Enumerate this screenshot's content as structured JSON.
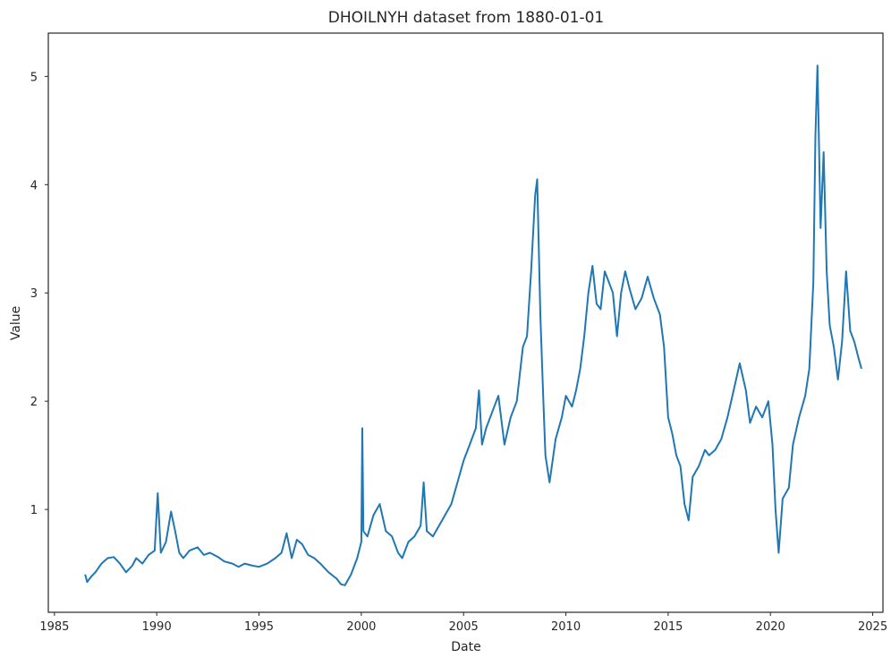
{
  "chart_data": {
    "type": "line",
    "title": "DHOILNYH dataset from 1880-01-01",
    "xlabel": "Date",
    "ylabel": "Value",
    "x_unit": "year",
    "xlim": [
      1984.7,
      2025.5
    ],
    "ylim": [
      0.05,
      5.4
    ],
    "x_ticks": [
      1985,
      1990,
      1995,
      2000,
      2005,
      2010,
      2015,
      2020,
      2025
    ],
    "y_ticks": [
      1,
      2,
      3,
      4,
      5
    ],
    "x_tick_labels": [
      "1985",
      "1990",
      "1995",
      "2000",
      "2005",
      "2010",
      "2015",
      "2020",
      "2025"
    ],
    "y_tick_labels": [
      "1",
      "2",
      "3",
      "4",
      "5"
    ],
    "grid": false,
    "series": [
      {
        "color": "#1f77b4",
        "x": [
          1986.5,
          1986.6,
          1986.8,
          1987.0,
          1987.3,
          1987.6,
          1987.9,
          1988.2,
          1988.5,
          1988.8,
          1989.0,
          1989.3,
          1989.6,
          1989.9,
          1990.05,
          1990.2,
          1990.45,
          1990.7,
          1990.9,
          1991.1,
          1991.3,
          1991.6,
          1992.0,
          1992.3,
          1992.6,
          1993.0,
          1993.3,
          1993.7,
          1994.0,
          1994.3,
          1994.7,
          1995.0,
          1995.4,
          1995.8,
          1996.1,
          1996.35,
          1996.6,
          1996.85,
          1997.1,
          1997.4,
          1997.7,
          1998.0,
          1998.4,
          1998.8,
          1999.0,
          1999.2,
          1999.5,
          1999.8,
          2000.0,
          2000.05,
          2000.1,
          2000.3,
          2000.6,
          2000.9,
          2001.2,
          2001.5,
          2001.8,
          2002.0,
          2002.3,
          2002.6,
          2002.9,
          2003.05,
          2003.2,
          2003.5,
          2003.8,
          2004.1,
          2004.4,
          2004.7,
          2005.0,
          2005.3,
          2005.6,
          2005.75,
          2005.9,
          2006.1,
          2006.4,
          2006.7,
          2007.0,
          2007.3,
          2007.6,
          2007.9,
          2008.1,
          2008.3,
          2008.5,
          2008.6,
          2008.75,
          2008.9,
          2009.0,
          2009.2,
          2009.5,
          2009.8,
          2010.0,
          2010.3,
          2010.5,
          2010.7,
          2010.9,
          2011.1,
          2011.3,
          2011.5,
          2011.7,
          2011.9,
          2012.1,
          2012.3,
          2012.5,
          2012.7,
          2012.9,
          2013.1,
          2013.4,
          2013.7,
          2014.0,
          2014.3,
          2014.6,
          2014.8,
          2015.0,
          2015.2,
          2015.4,
          2015.6,
          2015.8,
          2016.0,
          2016.2,
          2016.5,
          2016.8,
          2017.0,
          2017.3,
          2017.6,
          2017.9,
          2018.2,
          2018.5,
          2018.8,
          2019.0,
          2019.3,
          2019.6,
          2019.9,
          2020.1,
          2020.25,
          2020.4,
          2020.6,
          2020.9,
          2021.1,
          2021.4,
          2021.7,
          2021.9,
          2022.1,
          2022.2,
          2022.3,
          2022.45,
          2022.6,
          2022.75,
          2022.9,
          2023.1,
          2023.3,
          2023.5,
          2023.7,
          2023.9,
          2024.1,
          2024.3,
          2024.45
        ],
        "y": [
          0.4,
          0.33,
          0.38,
          0.42,
          0.5,
          0.55,
          0.56,
          0.5,
          0.42,
          0.48,
          0.55,
          0.5,
          0.58,
          0.62,
          1.15,
          0.6,
          0.7,
          0.98,
          0.8,
          0.6,
          0.55,
          0.62,
          0.65,
          0.58,
          0.6,
          0.56,
          0.52,
          0.5,
          0.47,
          0.5,
          0.48,
          0.47,
          0.5,
          0.55,
          0.6,
          0.78,
          0.55,
          0.72,
          0.68,
          0.58,
          0.55,
          0.5,
          0.42,
          0.36,
          0.31,
          0.3,
          0.4,
          0.55,
          0.7,
          1.75,
          0.8,
          0.75,
          0.95,
          1.05,
          0.8,
          0.75,
          0.6,
          0.55,
          0.7,
          0.75,
          0.85,
          1.25,
          0.8,
          0.75,
          0.85,
          0.95,
          1.05,
          1.25,
          1.45,
          1.6,
          1.75,
          2.1,
          1.6,
          1.75,
          1.9,
          2.05,
          1.6,
          1.85,
          2.0,
          2.5,
          2.6,
          3.2,
          3.9,
          4.05,
          2.8,
          2.0,
          1.5,
          1.25,
          1.65,
          1.85,
          2.05,
          1.95,
          2.1,
          2.3,
          2.6,
          3.0,
          3.25,
          2.9,
          2.85,
          3.2,
          3.1,
          3.0,
          2.6,
          3.0,
          3.2,
          3.05,
          2.85,
          2.95,
          3.15,
          2.95,
          2.8,
          2.5,
          1.85,
          1.7,
          1.5,
          1.4,
          1.05,
          0.9,
          1.3,
          1.4,
          1.55,
          1.5,
          1.55,
          1.65,
          1.85,
          2.1,
          2.35,
          2.1,
          1.8,
          1.95,
          1.85,
          2.0,
          1.6,
          1.0,
          0.6,
          1.1,
          1.2,
          1.6,
          1.85,
          2.05,
          2.3,
          3.1,
          4.45,
          5.1,
          3.6,
          4.3,
          3.2,
          2.7,
          2.5,
          2.2,
          2.55,
          3.2,
          2.65,
          2.55,
          2.4,
          2.3
        ]
      }
    ]
  }
}
